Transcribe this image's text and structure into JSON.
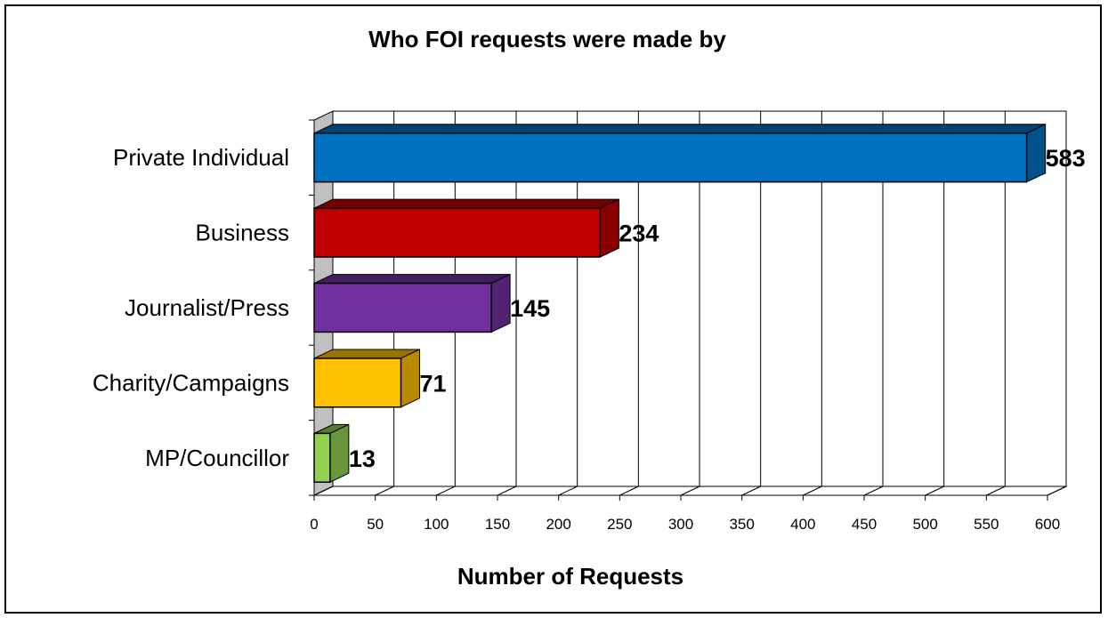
{
  "chart_data": {
    "type": "bar",
    "orientation": "horizontal",
    "style": "3d",
    "title": "Who FOI requests were made by",
    "xlabel": "Number of Requests",
    "ylabel": "",
    "categories": [
      "Private Individual",
      "Business",
      "Journalist/Press",
      "Charity/Campaigns",
      "MP/Councillor"
    ],
    "values": [
      583,
      234,
      145,
      71,
      13
    ],
    "data_labels": [
      "583",
      "234",
      "145",
      "71",
      "13"
    ],
    "colors": [
      "#0070C0",
      "#C00000",
      "#7030A0",
      "#FFC000",
      "#92D050"
    ],
    "xlim": [
      0,
      600
    ],
    "x_ticks": [
      0,
      50,
      100,
      150,
      200,
      250,
      300,
      350,
      400,
      450,
      500,
      550,
      600
    ],
    "x_tick_labels": [
      "0",
      "50",
      "100",
      "150",
      "200",
      "250",
      "300",
      "350",
      "400",
      "450",
      "500",
      "550",
      "600"
    ],
    "grid": true,
    "legend": "none"
  }
}
